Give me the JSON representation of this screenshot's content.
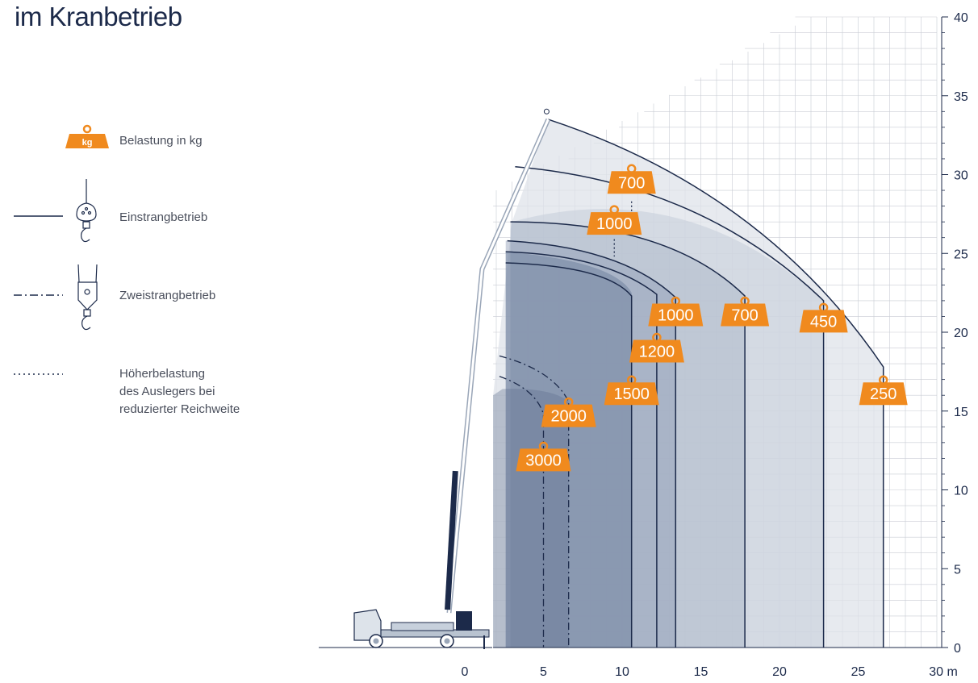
{
  "title": "im Kranbetrieb",
  "legend": {
    "load": "Belastung in kg",
    "load_badge": "kg",
    "single": "Einstrangbetrieb",
    "double": "Zweistrangbetrieb",
    "increased_1": "Höherbelastung",
    "increased_2": "des Auslegers bei",
    "increased_3": "reduzierter Reichweite"
  },
  "colors": {
    "navy": "#1c2a4a",
    "orange": "#f08a1e",
    "grid": "#c9ccd4",
    "zone_light": "#dfe3ea",
    "zone_dark": "#5c6e8c"
  },
  "chart_data": {
    "type": "load-diagram",
    "x_axis": {
      "ticks": [
        "0",
        "5",
        "10",
        "15",
        "20",
        "25"
      ],
      "unit_tick": "30 m",
      "range": [
        -9,
        30
      ]
    },
    "y_axis": {
      "ticks": [
        "0",
        "5",
        "10",
        "15",
        "20",
        "25",
        "30",
        "35",
        "40"
      ],
      "range": [
        0,
        40
      ]
    },
    "loads": [
      {
        "label": "700",
        "x": 10.6,
        "y": 29.5,
        "stem_to": 28.0
      },
      {
        "label": "1000",
        "x": 9.5,
        "y": 26.9,
        "stem_to": 24.8
      },
      {
        "label": "1000",
        "x": 13.4,
        "y": 21.1
      },
      {
        "label": "700",
        "x": 17.8,
        "y": 21.1
      },
      {
        "label": "450",
        "x": 22.8,
        "y": 20.7
      },
      {
        "label": "1200",
        "x": 12.2,
        "y": 18.8
      },
      {
        "label": "1500",
        "x": 10.6,
        "y": 16.1
      },
      {
        "label": "250",
        "x": 26.6,
        "y": 16.1
      },
      {
        "label": "2000",
        "x": 6.6,
        "y": 14.7
      },
      {
        "label": "3000",
        "x": 5.0,
        "y": 11.9
      }
    ],
    "single_strand_radii": [
      26.6,
      22.8,
      17.8,
      13.4,
      12.2,
      10.6
    ],
    "double_strand_radii": [
      6.6,
      5.0
    ]
  }
}
